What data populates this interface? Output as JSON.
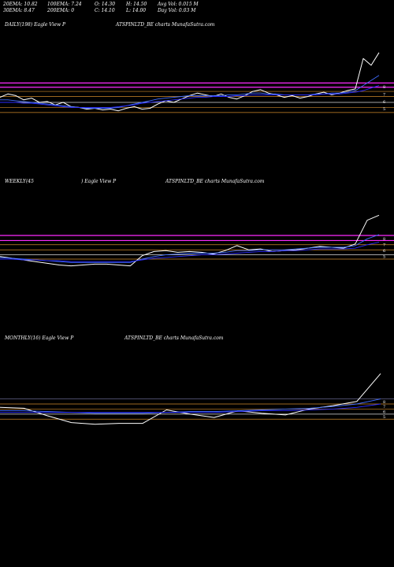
{
  "header": {
    "ema20": "20EMA: 10.82",
    "ema30": "30EMA: 8.47",
    "ema100": "100EMA: 7.24",
    "ema200": "200EMA: 0",
    "open": "O: 14.30",
    "close": "C: 14.10",
    "high": "H: 14.50",
    "low": "L: 14.00",
    "avg_vol": "Avg Vol: 0.015 M",
    "day_vol": "Day Vol: 0.03 M"
  },
  "colors": {
    "background": "#000000",
    "price": "#ffffff",
    "ema_fast": "#3f6bff",
    "ema_slow": "#2a2aff",
    "level_magenta": "#ff2bff",
    "level_orange": "#d08a2a",
    "level_white": "#dddddd"
  },
  "chart_data": [
    {
      "type": "line",
      "title_left": "DAILY(198) Eagle  View  P",
      "title_right": "ATSPINLTD_BE charts MunafaSutra.com",
      "level_labels": [
        "8",
        "7",
        "6",
        "5"
      ],
      "series": [
        {
          "values": [
            8.2,
            8.6,
            8.4,
            7.9,
            8.1,
            7.6,
            7.7,
            7.3,
            7.6,
            7.1,
            7.0,
            6.8,
            6.9,
            6.7,
            6.8,
            6.6,
            6.9,
            7.1,
            6.8,
            6.9,
            7.4,
            7.8,
            7.6,
            8.0,
            8.4,
            8.7,
            8.5,
            8.3,
            8.6,
            8.2,
            8.0,
            8.4,
            8.9,
            9.1,
            8.7,
            8.5,
            8.2,
            8.4,
            8.1,
            8.3,
            8.6,
            8.8,
            8.5,
            8.7,
            9.0,
            9.2,
            12.8,
            12.0,
            13.5
          ]
        },
        {
          "values": [
            7.9,
            7.9,
            7.8,
            7.7,
            7.6,
            7.5,
            7.4,
            7.3,
            7.2,
            7.1,
            7.0,
            6.9,
            6.9,
            6.9,
            6.9,
            7.0,
            7.2,
            7.4,
            7.6,
            7.8,
            8.0,
            8.1,
            8.2,
            8.3,
            8.4,
            8.4,
            8.4,
            8.4,
            8.4,
            8.5,
            8.5,
            8.6,
            8.7,
            8.7,
            8.6,
            8.6,
            8.5,
            8.5,
            8.5,
            8.5,
            8.6,
            8.6,
            8.7,
            8.7,
            8.8,
            9.0,
            9.6,
            10.2,
            10.8
          ]
        },
        {
          "values": [
            7.6,
            7.6,
            7.6,
            7.5,
            7.5,
            7.4,
            7.3,
            7.2,
            7.1,
            7.0,
            7.0,
            7.0,
            7.0,
            7.0,
            7.0,
            7.1,
            7.2,
            7.3,
            7.5,
            7.6,
            7.7,
            7.8,
            7.9,
            8.0,
            8.1,
            8.2,
            8.2,
            8.3,
            8.3,
            8.3,
            8.4,
            8.4,
            8.5,
            8.5,
            8.5,
            8.5,
            8.5,
            8.5,
            8.5,
            8.5,
            8.5,
            8.6,
            8.6,
            8.6,
            8.7,
            8.8,
            9.0,
            9.3,
            9.6
          ]
        }
      ],
      "ylim": [
        2,
        16
      ],
      "levels": [
        {
          "value": 9.9,
          "color": "magenta"
        },
        {
          "value": 9.4,
          "color": "magenta"
        },
        {
          "value": 8.9,
          "color": "orange"
        },
        {
          "value": 8.3,
          "color": "orange"
        },
        {
          "value": 7.6,
          "color": "white"
        },
        {
          "value": 7.0,
          "color": "orange"
        },
        {
          "value": 6.4,
          "color": "orange"
        }
      ]
    },
    {
      "type": "line",
      "title_left": "WEEKLY(45",
      "title_mid": ") Eagle  View  P",
      "title_right": "ATSPINLTD_BE charts MunafaSutra.com",
      "level_labels": [
        "8",
        "7",
        "6",
        "5"
      ],
      "series": [
        {
          "values": [
            7.9,
            7.7,
            7.5,
            7.3,
            7.1,
            6.9,
            6.8,
            6.9,
            7.0,
            7.0,
            6.9,
            6.8,
            8.0,
            8.5,
            8.6,
            8.4,
            8.5,
            8.4,
            8.2,
            8.6,
            9.2,
            8.7,
            8.8,
            8.5,
            8.6,
            8.7,
            8.9,
            9.1,
            9.0,
            8.9,
            9.4,
            12.2,
            12.8
          ]
        },
        {
          "values": [
            7.8,
            7.7,
            7.6,
            7.5,
            7.4,
            7.3,
            7.2,
            7.2,
            7.2,
            7.2,
            7.2,
            7.2,
            7.6,
            7.9,
            8.1,
            8.2,
            8.3,
            8.3,
            8.3,
            8.4,
            8.6,
            8.6,
            8.7,
            8.7,
            8.7,
            8.8,
            8.9,
            9.0,
            9.0,
            9.0,
            9.2,
            10.0,
            10.5
          ]
        },
        {
          "values": [
            7.6,
            7.6,
            7.5,
            7.5,
            7.4,
            7.4,
            7.3,
            7.3,
            7.3,
            7.3,
            7.3,
            7.3,
            7.5,
            7.7,
            7.8,
            7.9,
            8.0,
            8.1,
            8.1,
            8.2,
            8.3,
            8.4,
            8.5,
            8.5,
            8.6,
            8.6,
            8.7,
            8.8,
            8.8,
            8.8,
            8.9,
            9.3,
            9.6
          ]
        }
      ],
      "ylim": [
        2,
        16
      ],
      "levels": [
        {
          "value": 10.4,
          "color": "magenta"
        },
        {
          "value": 9.8,
          "color": "magenta"
        },
        {
          "value": 9.3,
          "color": "orange"
        },
        {
          "value": 8.7,
          "color": "orange"
        },
        {
          "value": 8.1,
          "color": "white"
        },
        {
          "value": 7.6,
          "color": "orange"
        }
      ]
    },
    {
      "type": "line",
      "title_left": "MONTHLY(16) Eagle  View  P",
      "title_right": "ATSPINLTD_BE charts MunafaSutra.com",
      "level_labels": [
        "8",
        "7",
        "6",
        "5"
      ],
      "series": [
        {
          "values": [
            8.6,
            8.5,
            7.6,
            6.8,
            6.6,
            6.7,
            6.7,
            8.3,
            7.8,
            7.4,
            8.2,
            7.9,
            7.7,
            8.4,
            8.8,
            9.3,
            12.6
          ]
        },
        {
          "values": [
            8.2,
            8.2,
            8.1,
            8.0,
            7.9,
            7.9,
            7.9,
            8.0,
            8.1,
            8.1,
            8.2,
            8.3,
            8.4,
            8.5,
            8.7,
            9.0,
            9.6
          ]
        },
        {
          "values": [
            8.0,
            8.0,
            8.0,
            8.0,
            8.0,
            8.0,
            8.0,
            8.0,
            8.0,
            8.0,
            8.1,
            8.2,
            8.2,
            8.3,
            8.4,
            8.6,
            9.0
          ]
        }
      ],
      "ylim": [
        2,
        16
      ],
      "levels": [
        {
          "value": 9.6,
          "color": "slate"
        },
        {
          "value": 9.0,
          "color": "orange"
        },
        {
          "value": 8.4,
          "color": "orange"
        },
        {
          "value": 7.8,
          "color": "white"
        },
        {
          "value": 7.2,
          "color": "orange"
        }
      ]
    }
  ]
}
